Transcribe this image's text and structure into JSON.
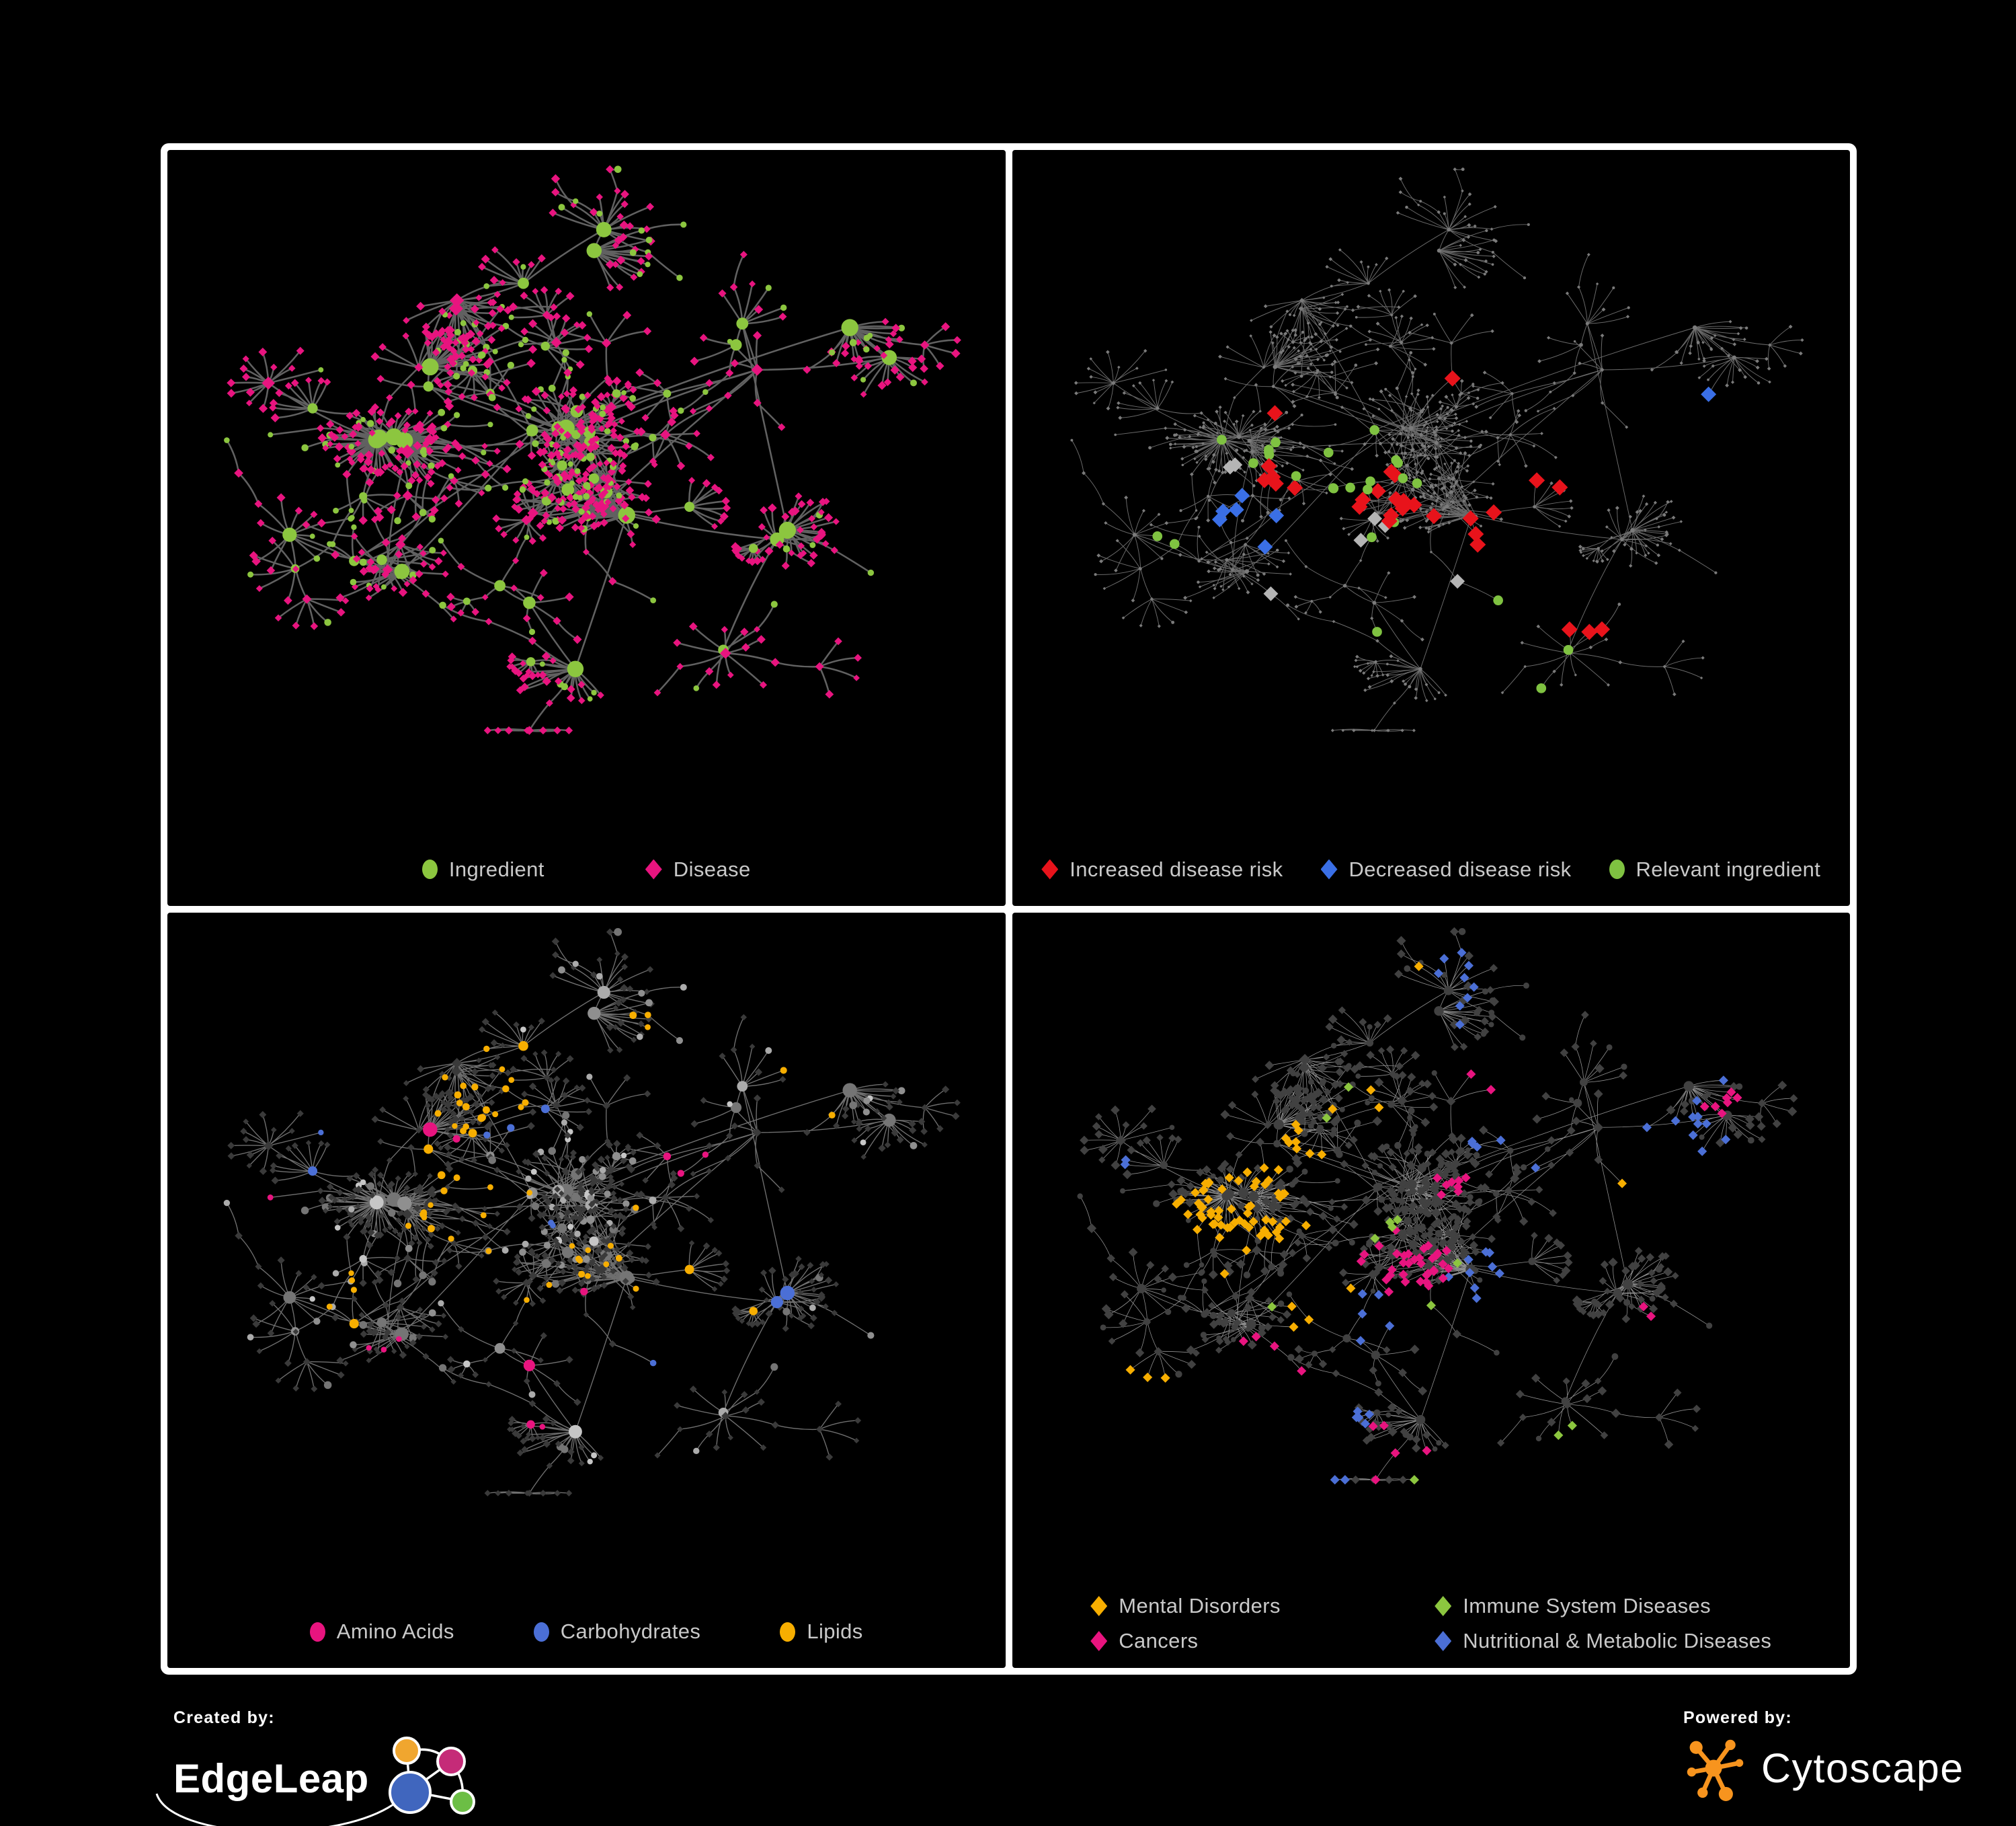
{
  "figure": {
    "background": "#000000",
    "frame_color": "#ffffff",
    "legend_text_color": "#C9C9C9"
  },
  "panels": [
    {
      "id": "ingredient-disease",
      "legend": [
        {
          "shape": "ellipse",
          "color": "#8CC63F",
          "label": "Ingredient"
        },
        {
          "shape": "diamond",
          "color": "#E8147F",
          "label": "Disease"
        }
      ]
    },
    {
      "id": "disease-risk",
      "legend": [
        {
          "shape": "diamond",
          "color": "#E8131B",
          "label": "Increased disease risk"
        },
        {
          "shape": "diamond",
          "color": "#3A6FE6",
          "label": "Decreased disease risk"
        },
        {
          "shape": "ellipse",
          "color": "#7FC241",
          "label": "Relevant ingredient"
        }
      ]
    },
    {
      "id": "compound-classes",
      "legend": [
        {
          "shape": "ellipse",
          "color": "#E8147F",
          "label": "Amino Acids"
        },
        {
          "shape": "ellipse",
          "color": "#4B6FD6",
          "label": "Carbohydrates"
        },
        {
          "shape": "ellipse",
          "color": "#F7AE00",
          "label": "Lipids"
        }
      ]
    },
    {
      "id": "disease-classes",
      "legend": [
        {
          "shape": "diamond",
          "color": "#F7AE00",
          "label": "Mental Disorders"
        },
        {
          "shape": "diamond",
          "color": "#8CC63F",
          "label": "Immune System Diseases"
        },
        {
          "shape": "diamond",
          "color": "#E8147F",
          "label": "Cancers"
        },
        {
          "shape": "diamond",
          "color": "#4B6FD6",
          "label": "Nutritional & Metabolic Diseases"
        }
      ]
    }
  ],
  "footer": {
    "created_by_label": "Created by:",
    "created_by_brand": "EdgeLeap",
    "powered_by_label": "Powered by:",
    "powered_by_brand": "Cytoscape",
    "cytoscape_accent": "#F7941E",
    "edgeleap_colors": {
      "blue": "#4066BE",
      "orange": "#F0A62F",
      "pink": "#C52B78",
      "green": "#6CBE45"
    }
  },
  "network": {
    "gen": {
      "seed": 20240613,
      "blobs": [
        [
          0.26,
          0.47,
          0.05,
          5,
          1.5,
          0.55
        ],
        [
          0.48,
          0.42,
          0.055,
          6,
          1.25,
          0.95
        ],
        [
          0.5,
          0.54,
          0.045,
          4,
          1.15,
          0.5
        ],
        [
          0.565,
          0.56,
          0.015,
          1,
          2.6,
          1.0
        ],
        [
          0.5,
          0.8,
          0.015,
          1,
          2.6,
          1.0
        ],
        [
          0.24,
          0.62,
          0.045,
          3,
          1.0,
          0.6
        ],
        [
          0.36,
          0.19,
          0.065,
          3,
          0.9,
          0.5
        ],
        [
          0.53,
          0.12,
          0.045,
          2,
          0.8,
          0.6
        ],
        [
          0.7,
          0.29,
          0.055,
          3,
          0.9,
          0.5
        ],
        [
          0.85,
          0.3,
          0.045,
          2,
          1.1,
          0.5
        ],
        [
          0.73,
          0.6,
          0.045,
          2,
          1.0,
          0.6
        ],
        [
          0.71,
          0.77,
          0.04,
          2,
          0.9,
          0.5
        ],
        [
          0.12,
          0.35,
          0.035,
          1,
          0.7,
          0.6
        ],
        [
          0.14,
          0.6,
          0.035,
          1,
          0.8,
          0.6
        ],
        [
          0.4,
          0.68,
          0.045,
          2,
          1.0,
          0.6
        ],
        [
          0.62,
          0.42,
          0.03,
          1,
          0.8,
          0.9
        ],
        [
          0.3,
          0.33,
          0.04,
          2,
          1.0,
          0.6
        ]
      ],
      "leaf_base": 3,
      "leaf_span": 22,
      "leaf_pow": 1.7,
      "leaf_dist": 0.042,
      "leaf_diamond_prob": 0.8,
      "chain_prob": 0.24,
      "subfan_prob": 0.28,
      "extra_links": 7
    },
    "styles": [
      {
        "edge": {
          "color": "#616161",
          "w": 2.6
        },
        "circle": {
          "fill": "#8CC63F",
          "leafR": 4.6,
          "hubBase": 6.5,
          "hubK": 0.28,
          "hubMax": 13
        },
        "diamond": {
          "fill": "#E8147F",
          "leafR": 5.2,
          "hubBase": 6.0,
          "hubK": 0.18,
          "hubMax": 10
        },
        "highlights": []
      },
      {
        "edge": {
          "color": "#6B6B6B",
          "w": 1.0
        },
        "circle": {
          "fill": "#7B7B7B",
          "leafR": 2.1,
          "hubBase": 2.4,
          "hubK": 0.03,
          "hubMax": 3.4
        },
        "diamond": {
          "fill": "#7B7B7B",
          "leafR": 2.3,
          "hubBase": 2.5,
          "hubK": 0.03,
          "hubMax": 3.4
        },
        "highlights": [
          {
            "shape": "diamond",
            "color": "#E8131B",
            "r": 11,
            "regions": [
              [
                0.45,
                0.55,
                0.13,
                12
              ],
              [
                0.3,
                0.52,
                0.09,
                5
              ],
              [
                0.58,
                0.6,
                0.08,
                4
              ],
              [
                0.64,
                0.5,
                0.05,
                2
              ],
              [
                0.52,
                0.32,
                0.05,
                1
              ],
              [
                0.71,
                0.72,
                0.08,
                3
              ],
              [
                0.33,
                0.4,
                0.04,
                1
              ]
            ]
          },
          {
            "shape": "diamond",
            "color": "#3A6FE6",
            "r": 10.5,
            "regions": [
              [
                0.26,
                0.56,
                0.08,
                6
              ],
              [
                0.84,
                0.42,
                0.05,
                2
              ]
            ]
          },
          {
            "shape": "diamond",
            "color": "#B5B5B5",
            "r": 10,
            "regions": [
              [
                0.24,
                0.5,
                0.05,
                2
              ],
              [
                0.44,
                0.56,
                0.12,
                3
              ],
              [
                0.56,
                0.68,
                0.08,
                2
              ],
              [
                0.3,
                0.68,
                0.05,
                1
              ]
            ]
          },
          {
            "shape": "circle",
            "color": "#7FC241",
            "r": 7.5,
            "regions": [
              [
                0.4,
                0.52,
                0.16,
                14
              ],
              [
                0.27,
                0.47,
                0.09,
                6
              ],
              [
                0.62,
                0.64,
                0.08,
                4
              ],
              [
                0.68,
                0.86,
                0.09,
                4
              ],
              [
                0.8,
                0.45,
                0.05,
                1
              ],
              [
                0.16,
                0.6,
                0.06,
                2
              ],
              [
                0.47,
                0.73,
                0.05,
                2
              ]
            ]
          }
        ]
      },
      {
        "edge": {
          "color": "#6F6F6F",
          "w": 1.4
        },
        "circle": {
          "palette": [
            "#C6C6C6",
            "#ABABAB",
            "#8F8F8F",
            "#757575"
          ],
          "leafR": 5.0,
          "hubBase": 6.5,
          "hubK": 0.18,
          "hubMax": 11
        },
        "diamond": {
          "fill": "#3A3A3A",
          "leafR": 4.4,
          "hubBase": 4.8,
          "hubK": 0.1,
          "hubMax": 7
        },
        "highlights": [
          {
            "shape": "circle",
            "color": "#F7AE00",
            "regions": [
              [
                0.37,
                0.26,
                0.1,
                22
              ],
              [
                0.34,
                0.44,
                0.1,
                16
              ],
              [
                0.48,
                0.58,
                0.13,
                9
              ],
              [
                0.64,
                0.54,
                0.16,
                6
              ],
              [
                0.22,
                0.6,
                0.14,
                5
              ],
              [
                0.55,
                0.14,
                0.08,
                3
              ],
              [
                0.76,
                0.3,
                0.08,
                2
              ]
            ]
          },
          {
            "shape": "circle",
            "color": "#4B6FD6",
            "regions": [
              [
                0.38,
                0.27,
                0.08,
                9
              ],
              [
                0.14,
                0.32,
                0.09,
                2
              ],
              [
                0.64,
                0.6,
                0.14,
                3
              ],
              [
                0.45,
                0.47,
                0.06,
                2
              ]
            ]
          },
          {
            "shape": "circle",
            "color": "#E8147F",
            "regions": [
              [
                0.3,
                0.37,
                0.07,
                3
              ],
              [
                0.52,
                0.68,
                0.1,
                4
              ],
              [
                0.24,
                0.7,
                0.09,
                3
              ],
              [
                0.66,
                0.42,
                0.1,
                2
              ],
              [
                0.46,
                0.77,
                0.06,
                2
              ],
              [
                0.13,
                0.47,
                0.06,
                1
              ],
              [
                0.58,
                0.36,
                0.05,
                1
              ]
            ]
          }
        ]
      },
      {
        "edge": {
          "color": "#8F8F8F",
          "w": 0.85
        },
        "circle": {
          "fill": "#414141",
          "leafR": 4.6,
          "hubBase": 5.4,
          "hubK": 0.1,
          "hubMax": 8
        },
        "diamond": {
          "fill": "#414141",
          "leafR": 5.6,
          "hubBase": 6.0,
          "hubK": 0.08,
          "hubMax": 8
        },
        "highlights": [
          {
            "shape": "diamond",
            "color": "#F7AE00",
            "r": 6.6,
            "regions": [
              [
                0.235,
                0.49,
                0.12,
                60
              ],
              [
                0.33,
                0.36,
                0.09,
                9
              ],
              [
                0.42,
                0.3,
                0.05,
                3
              ],
              [
                0.15,
                0.78,
                0.07,
                4
              ],
              [
                0.36,
                0.62,
                0.06,
                4
              ],
              [
                0.74,
                0.44,
                0.05,
                3
              ],
              [
                0.55,
                0.8,
                0.05,
                2
              ],
              [
                0.47,
                0.1,
                0.04,
                1
              ]
            ]
          },
          {
            "shape": "diamond",
            "color": "#E8147F",
            "r": 6.6,
            "regions": [
              [
                0.47,
                0.56,
                0.1,
                34
              ],
              [
                0.53,
                0.44,
                0.07,
                8
              ],
              [
                0.88,
                0.3,
                0.07,
                7
              ],
              [
                0.45,
                0.86,
                0.1,
                5
              ],
              [
                0.28,
                0.73,
                0.06,
                4
              ],
              [
                0.78,
                0.64,
                0.05,
                2
              ],
              [
                0.25,
                0.13,
                0.04,
                1
              ],
              [
                0.6,
                0.25,
                0.05,
                2
              ]
            ]
          },
          {
            "shape": "diamond",
            "color": "#4B6FD6",
            "r": 6.6,
            "regions": [
              [
                0.585,
                0.6,
                0.07,
                18
              ],
              [
                0.5,
                0.12,
                0.14,
                9
              ],
              [
                0.17,
                0.14,
                0.11,
                7
              ],
              [
                0.8,
                0.38,
                0.1,
                10
              ],
              [
                0.83,
                0.2,
                0.08,
                5
              ],
              [
                0.3,
                0.84,
                0.13,
                7
              ],
              [
                0.6,
                0.33,
                0.12,
                5
              ],
              [
                0.44,
                0.64,
                0.08,
                5
              ],
              [
                0.13,
                0.4,
                0.06,
                2
              ],
              [
                0.68,
                0.08,
                0.05,
                3
              ]
            ]
          },
          {
            "shape": "diamond",
            "color": "#8CC63F",
            "r": 6.6,
            "regions": [
              [
                0.43,
                0.5,
                0.12,
                4
              ],
              [
                0.55,
                0.6,
                0.08,
                2
              ],
              [
                0.4,
                0.3,
                0.08,
                2
              ],
              [
                0.66,
                0.84,
                0.07,
                2
              ],
              [
                0.3,
                0.63,
                0.05,
                1
              ],
              [
                0.48,
                0.9,
                0.04,
                1
              ]
            ]
          }
        ]
      }
    ]
  }
}
